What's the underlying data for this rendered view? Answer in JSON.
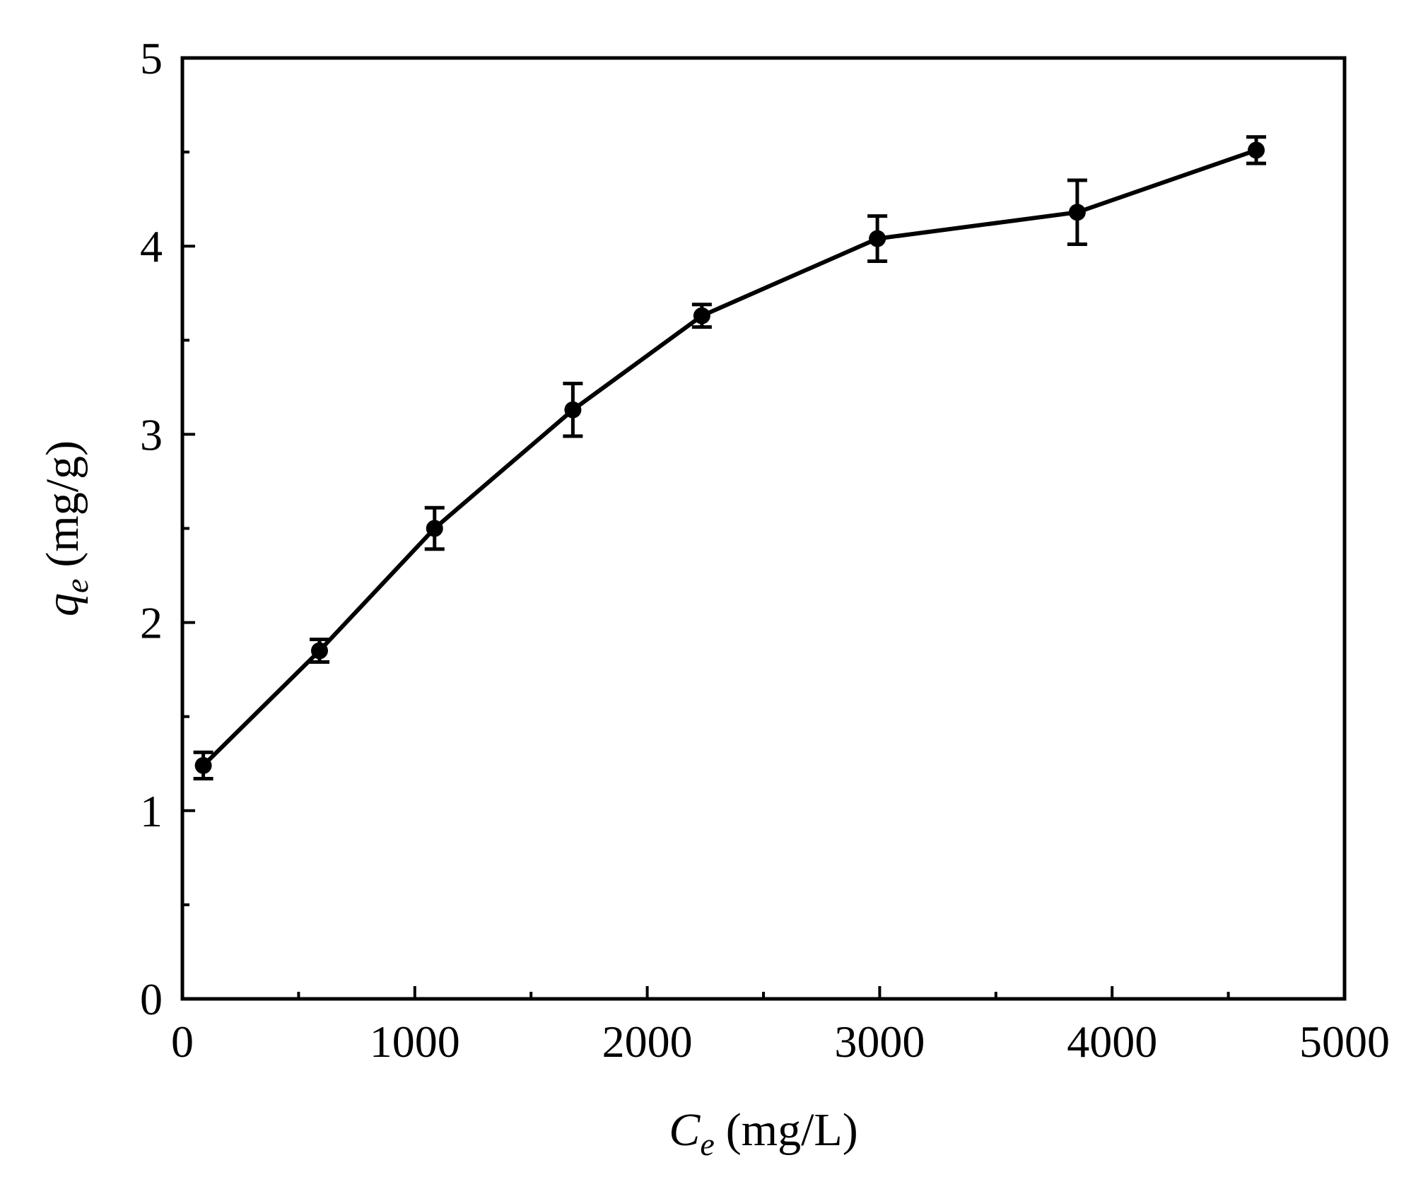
{
  "chart_data": {
    "type": "line",
    "title": "",
    "xlabel": {
      "symbol": "C",
      "subscript": "e",
      "unit": "(mg/L)"
    },
    "ylabel": {
      "symbol": "q",
      "subscript": "e",
      "unit": "(mg/g)"
    },
    "xlim": [
      0,
      5000
    ],
    "ylim": [
      0,
      5
    ],
    "x_major_ticks": [
      0,
      1000,
      2000,
      3000,
      4000,
      5000
    ],
    "x_minor_ticks": [
      500,
      1500,
      2500,
      3500,
      4500
    ],
    "y_major_ticks": [
      0,
      1,
      2,
      3,
      4,
      5
    ],
    "y_minor_ticks": [
      0.5,
      1.5,
      2.5,
      3.5,
      4.5
    ],
    "grid": false,
    "legend": "none",
    "marker": "filled-circle",
    "color": "#000000",
    "series": [
      {
        "x": [
          90,
          590,
          1085,
          1680,
          2235,
          2990,
          3850,
          4620
        ],
        "y": [
          1.24,
          1.85,
          2.5,
          3.13,
          3.63,
          4.04,
          4.18,
          4.51
        ],
        "error": [
          0.07,
          0.06,
          0.11,
          0.14,
          0.06,
          0.12,
          0.17,
          0.07
        ]
      }
    ]
  }
}
